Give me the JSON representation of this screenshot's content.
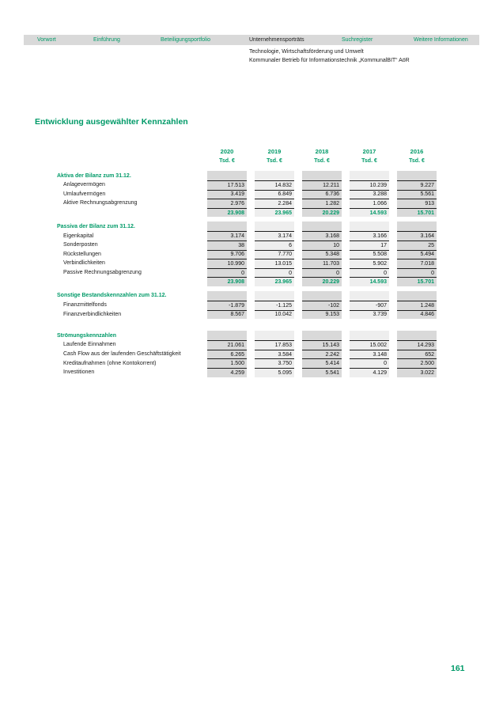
{
  "nav": {
    "items": [
      {
        "label": "Vorwort",
        "active": false
      },
      {
        "label": "Einführung",
        "active": false
      },
      {
        "label": "Beteiligungsportfolio",
        "active": false
      },
      {
        "label": "Unternehmensporträts",
        "active": true
      },
      {
        "label": "Suchregister",
        "active": false
      },
      {
        "label": "Weitere Informationen",
        "active": false
      }
    ]
  },
  "header": {
    "category": "Technologie, Wirtschaftsförderung und Umwelt",
    "company": "Kommunaler Betrieb für Informationstechnik „KommunalBIT“ AöR"
  },
  "title": "Entwicklung ausgewählter Kennzahlen",
  "page_number": "161",
  "colors": {
    "accent": "#009a68",
    "nav_bar_background": "#d9d9d9",
    "column_shade_dark": "#d9d9d9",
    "column_shade_light": "#eeeeee",
    "rule_line": "#1f1f1f"
  },
  "table": {
    "columns": [
      "2020",
      "2019",
      "2018",
      "2017",
      "2016"
    ],
    "unit_label": "Tsd. €",
    "sections": [
      {
        "header": "Aktiva der Bilanz zum 31.12.",
        "rows": [
          {
            "label": "Anlagevermögen",
            "values": [
              "17.513",
              "14.832",
              "12.211",
              "10.239",
              "9.227"
            ]
          },
          {
            "label": "Umlaufvermögen",
            "values": [
              "3.419",
              "6.849",
              "6.736",
              "3.288",
              "5.561"
            ]
          },
          {
            "label": "Aktive Rechnungsabgrenzung",
            "values": [
              "2.976",
              "2.284",
              "1.282",
              "1.066",
              "913"
            ]
          }
        ],
        "total": [
          "23.908",
          "23.965",
          "20.229",
          "14.593",
          "15.701"
        ]
      },
      {
        "header": "Passiva der Bilanz zum 31.12.",
        "rows": [
          {
            "label": "Eigenkapital",
            "values": [
              "3.174",
              "3.174",
              "3.168",
              "3.166",
              "3.164"
            ]
          },
          {
            "label": "Sonderposten",
            "values": [
              "38",
              "6",
              "10",
              "17",
              "25"
            ]
          },
          {
            "label": "Rückstellungen",
            "values": [
              "9.706",
              "7.770",
              "5.348",
              "5.508",
              "5.494"
            ]
          },
          {
            "label": "Verbindlichkeiten",
            "values": [
              "10.990",
              "13.015",
              "11.703",
              "5.902",
              "7.018"
            ]
          },
          {
            "label": "Passive Rechnungsabgrenzung",
            "values": [
              "0",
              "0",
              "0",
              "0",
              "0"
            ]
          }
        ],
        "total": [
          "23.908",
          "23.965",
          "20.229",
          "14.593",
          "15.701"
        ]
      },
      {
        "header": "Sonstige Bestandskennzahlen zum 31.12.",
        "rows": [
          {
            "label": "Finanzmittelfonds",
            "values": [
              "-1.879",
              "-1.125",
              "-102",
              "-907",
              "1.248"
            ]
          },
          {
            "label": "Finanzverbindlichkeiten",
            "values": [
              "8.567",
              "10.042",
              "9.153",
              "3.739",
              "4.846"
            ]
          }
        ]
      },
      {
        "header": "Strömungskennzahlen",
        "rows": [
          {
            "label": "Laufende Einnahmen",
            "values": [
              "21.061",
              "17.853",
              "15.143",
              "15.002",
              "14.293"
            ]
          },
          {
            "label": "Cash Flow aus der laufenden Geschäftstätigkeit",
            "values": [
              "6.265",
              "3.584",
              "2.242",
              "3.148",
              "652"
            ]
          },
          {
            "label": "Kreditaufnahmen (ohne Kontokorrent)",
            "values": [
              "1.500",
              "3.750",
              "5.414",
              "0",
              "2.500"
            ]
          },
          {
            "label": "Investitionen",
            "values": [
              "4.259",
              "5.095",
              "5.541",
              "4.129",
              "3.022"
            ]
          }
        ]
      }
    ]
  }
}
